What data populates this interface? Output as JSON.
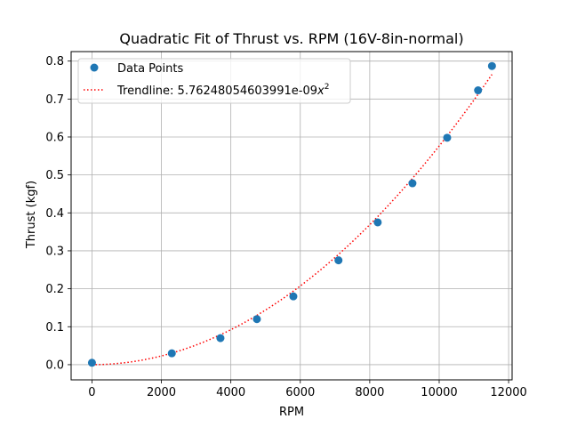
{
  "chart_data": {
    "type": "scatter",
    "title": "Quadratic Fit of Thrust vs. RPM (16V-8in-normal)",
    "xlabel": "RPM",
    "ylabel": "Thrust (kgf)",
    "xlim": [
      -600,
      12100
    ],
    "ylim": [
      -0.04,
      0.825
    ],
    "xticks": [
      0,
      2000,
      4000,
      6000,
      8000,
      10000,
      12000
    ],
    "yticks": [
      0.0,
      0.1,
      0.2,
      0.3,
      0.4,
      0.5,
      0.6,
      0.7,
      0.8
    ],
    "xtick_labels": [
      "0",
      "2000",
      "4000",
      "6000",
      "8000",
      "10000",
      "12000"
    ],
    "ytick_labels": [
      "0.0",
      "0.1",
      "0.2",
      "0.3",
      "0.4",
      "0.5",
      "0.6",
      "0.7",
      "0.8"
    ],
    "grid": true,
    "legend_position": "top-left",
    "series": [
      {
        "name": "Data Points",
        "kind": "scatter",
        "color": "#1f77b4",
        "x": [
          0,
          2300,
          3700,
          4750,
          5800,
          7100,
          8230,
          9230,
          10230,
          11120,
          11520
        ],
        "y": [
          0.005,
          0.03,
          0.07,
          0.12,
          0.18,
          0.275,
          0.375,
          0.478,
          0.598,
          0.723,
          0.787
        ]
      },
      {
        "name": "Trendline: 5.76248054603991e-09",
        "name_power": "2",
        "kind": "line",
        "style": "dotted",
        "color": "#ff0000",
        "coefficient": 5.76248054603991e-09,
        "x_range": [
          0,
          11520
        ]
      }
    ]
  }
}
